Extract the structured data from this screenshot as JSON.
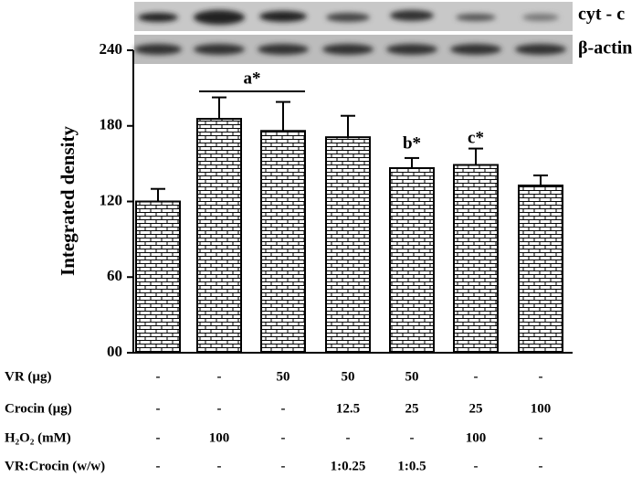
{
  "chart_data": {
    "type": "bar",
    "y_label": "Integrated density",
    "values": [
      120,
      185.6,
      176,
      171,
      146.5,
      149,
      132.7
    ],
    "errors": [
      10,
      17,
      23,
      17,
      8,
      13,
      8
    ],
    "color": "#000000",
    "ylim": [
      0,
      240
    ],
    "yticks": [
      {
        "value": 0,
        "label": "00"
      },
      60,
      120,
      180,
      240
    ],
    "annotations": [
      "a*",
      "b*",
      "c*"
    ],
    "blot_labels": [
      "cyt - c",
      "β-actin"
    ],
    "table": [
      {
        "label": "VR (µg)",
        "cells": [
          "-",
          "-",
          "50",
          "50",
          "50",
          "-",
          "-"
        ]
      },
      {
        "label": "Crocin (µg)",
        "cells": [
          "-",
          "-",
          "-",
          "12.5",
          "25",
          "25",
          "100"
        ]
      },
      {
        "label": "H₂O₂ (mM)",
        "cells": [
          "-",
          "100",
          "-",
          "-",
          "-",
          "100",
          "-"
        ]
      },
      {
        "label": "VR:Crocin (w/w)",
        "cells": [
          "-",
          "-",
          "-",
          "1:0.25",
          "1:0.5",
          "-",
          "-"
        ]
      }
    ]
  }
}
